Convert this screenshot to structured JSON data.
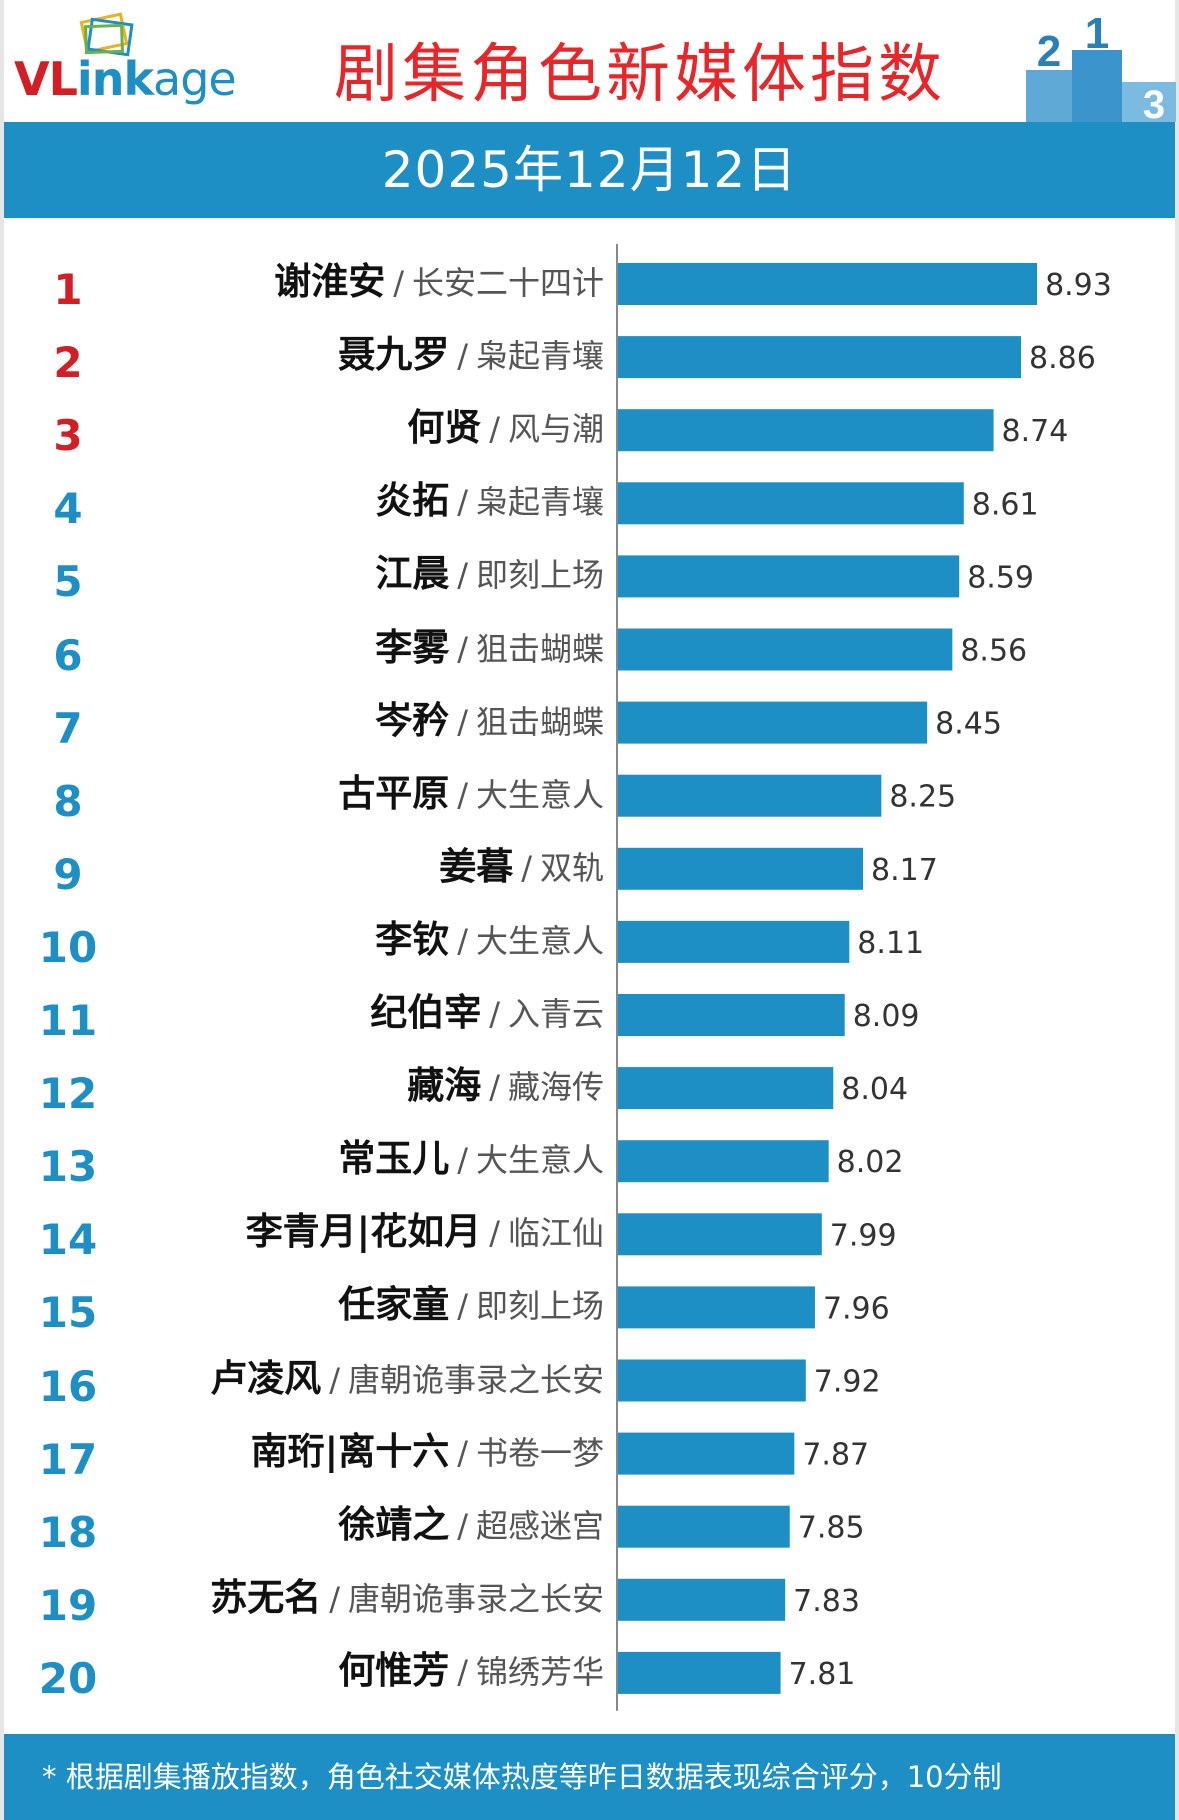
{
  "header": {
    "logo_text_1": "VL",
    "logo_text_2": "ink",
    "logo_text_3": "age",
    "title": "剧集角色新媒体指数",
    "date": "2025年12月12日",
    "podium_labels": [
      "2",
      "1",
      "3"
    ]
  },
  "colors": {
    "bar": "#1e8fc4",
    "rank_top": "#d21f26",
    "rank_rest": "#1e8fc4",
    "title": "#e8262a"
  },
  "separator": "/",
  "chart_data": {
    "type": "bar",
    "orientation": "horizontal",
    "title": "剧集角色新媒体指数",
    "subtitle": "2025年12月12日",
    "xlabel": "",
    "ylabel": "",
    "xlim": [
      7.1,
      9.1
    ],
    "grid": false,
    "legend": "none",
    "rows": [
      {
        "rank": "1",
        "name": "谢淮安",
        "show": "长安二十四计",
        "value": 8.93
      },
      {
        "rank": "2",
        "name": "聂九罗",
        "show": "枭起青壤",
        "value": 8.86
      },
      {
        "rank": "3",
        "name": "何贤",
        "show": "风与潮",
        "value": 8.74
      },
      {
        "rank": "4",
        "name": "炎拓",
        "show": "枭起青壤",
        "value": 8.61
      },
      {
        "rank": "5",
        "name": "江晨",
        "show": "即刻上场",
        "value": 8.59
      },
      {
        "rank": "6",
        "name": "李雾",
        "show": "狙击蝴蝶",
        "value": 8.56
      },
      {
        "rank": "7",
        "name": "岑矜",
        "show": "狙击蝴蝶",
        "value": 8.45
      },
      {
        "rank": "8",
        "name": "古平原",
        "show": "大生意人",
        "value": 8.25
      },
      {
        "rank": "9",
        "name": "姜暮",
        "show": "双轨",
        "value": 8.17
      },
      {
        "rank": "10",
        "name": "李钦",
        "show": "大生意人",
        "value": 8.11
      },
      {
        "rank": "11",
        "name": "纪伯宰",
        "show": "入青云",
        "value": 8.09
      },
      {
        "rank": "12",
        "name": "藏海",
        "show": "藏海传",
        "value": 8.04
      },
      {
        "rank": "13",
        "name": "常玉儿",
        "show": "大生意人",
        "value": 8.02
      },
      {
        "rank": "14",
        "name": "李青月|花如月",
        "show": "临江仙",
        "value": 7.99
      },
      {
        "rank": "15",
        "name": "任家童",
        "show": "即刻上场",
        "value": 7.96
      },
      {
        "rank": "16",
        "name": "卢凌风",
        "show": "唐朝诡事录之长安",
        "value": 7.92
      },
      {
        "rank": "17",
        "name": "南珩|离十六",
        "show": "书卷一梦",
        "value": 7.87
      },
      {
        "rank": "18",
        "name": "徐靖之",
        "show": "超感迷宫",
        "value": 7.85
      },
      {
        "rank": "19",
        "name": "苏无名",
        "show": "唐朝诡事录之长安",
        "value": 7.83
      },
      {
        "rank": "20",
        "name": "何惟芳",
        "show": "锦绣芳华",
        "value": 7.81
      }
    ]
  },
  "footer": {
    "note": "* 根据剧集播放指数，角色社交媒体热度等昨日数据表现综合评分，10分制"
  }
}
